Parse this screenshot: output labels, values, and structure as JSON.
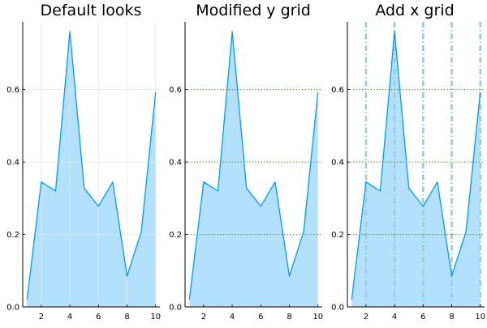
{
  "chart_data": [
    {
      "type": "area",
      "title": "Default looks",
      "x": [
        1,
        2,
        3,
        4,
        5,
        6,
        7,
        8,
        9,
        10
      ],
      "series": [
        {
          "values": [
            0.02,
            0.345,
            0.32,
            0.76,
            0.328,
            0.278,
            0.345,
            0.085,
            0.208,
            0.593
          ]
        }
      ],
      "xlim": [
        0.7,
        10.3
      ],
      "ylim": [
        0,
        0.787
      ],
      "xticks": [
        "2",
        "4",
        "6",
        "8",
        "10"
      ],
      "yticks": [
        "0.0",
        "0.2",
        "0.4",
        "0.6"
      ],
      "xgrid": {
        "on": true,
        "style": "solid",
        "color": "#e6e6e6"
      },
      "ygrid": {
        "on": true,
        "style": "solid",
        "color": "#e6e6e6"
      },
      "line_color": "#009AF9",
      "fill_color": "#b3e0fd"
    },
    {
      "type": "area",
      "title": "Modified y grid",
      "x": [
        1,
        2,
        3,
        4,
        5,
        6,
        7,
        8,
        9,
        10
      ],
      "series": [
        {
          "values": [
            0.02,
            0.345,
            0.32,
            0.76,
            0.328,
            0.278,
            0.345,
            0.085,
            0.208,
            0.593
          ]
        }
      ],
      "xlim": [
        0.7,
        10.3
      ],
      "ylim": [
        0,
        0.787
      ],
      "xticks": [
        "2",
        "4",
        "6",
        "8",
        "10"
      ],
      "yticks": [
        "0.0",
        "0.2",
        "0.4",
        "0.6"
      ],
      "xgrid": {
        "on": false
      },
      "ygrid": {
        "on": true,
        "style": "dotted",
        "color": "#5a8a2a"
      },
      "line_color": "#009AF9",
      "fill_color": "#b3e0fd"
    },
    {
      "type": "area",
      "title": "Add x grid",
      "x": [
        1,
        2,
        3,
        4,
        5,
        6,
        7,
        8,
        9,
        10
      ],
      "series": [
        {
          "values": [
            0.02,
            0.345,
            0.32,
            0.76,
            0.328,
            0.278,
            0.345,
            0.085,
            0.208,
            0.593
          ]
        }
      ],
      "xlim": [
        0.7,
        10.3
      ],
      "ylim": [
        0,
        0.787
      ],
      "xticks": [
        "2",
        "4",
        "6",
        "8",
        "10"
      ],
      "yticks": [
        "0.0",
        "0.2",
        "0.4",
        "0.6"
      ],
      "xgrid": {
        "on": true,
        "style": "dashdot",
        "color": "#9ccdd6"
      },
      "ygrid": {
        "on": true,
        "style": "dotted",
        "color": "#5a8a2a"
      },
      "line_color": "#009AF9",
      "fill_color": "#b3e0fd"
    }
  ]
}
